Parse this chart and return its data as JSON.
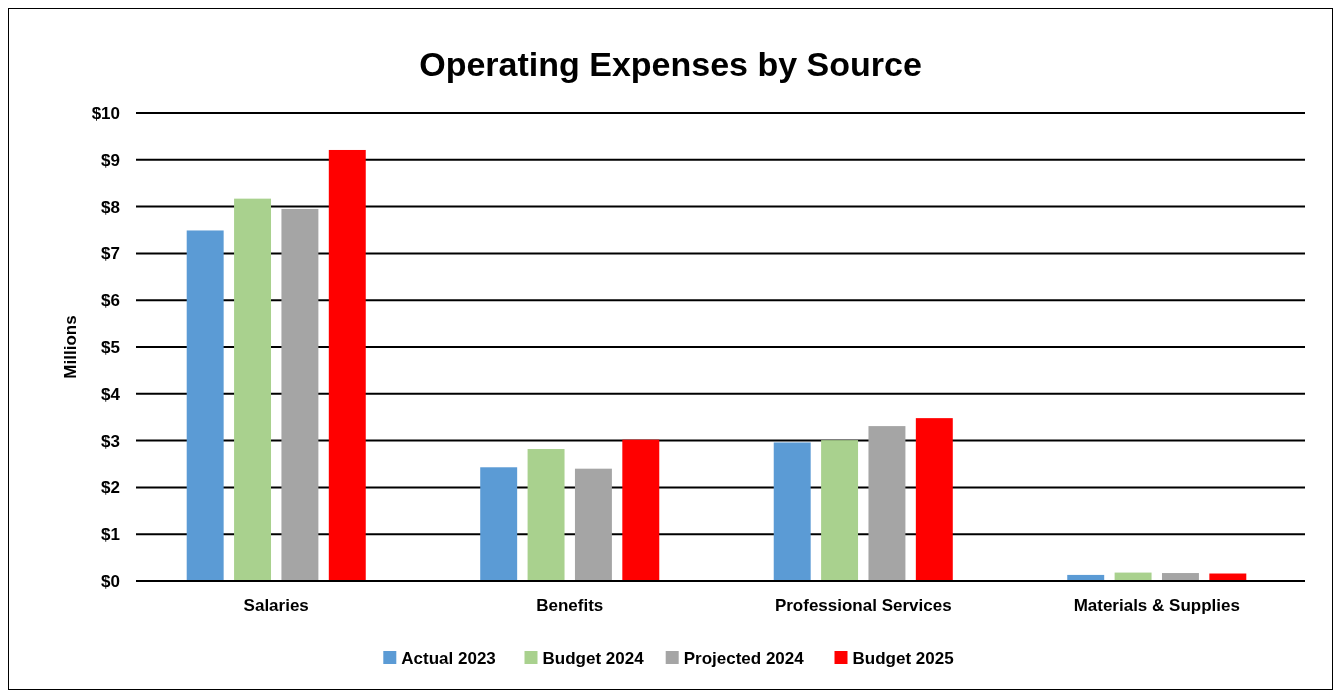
{
  "chart_data": {
    "type": "bar",
    "title": "Operating Expenses by Source",
    "ylabel": "Millions",
    "categories": [
      "Salaries",
      "Benefits",
      "Professional Services",
      "Materials & Supplies"
    ],
    "series": [
      {
        "name": "Actual 2023",
        "color": "#5b9bd5",
        "values": [
          7.49,
          2.43,
          2.96,
          0.13
        ]
      },
      {
        "name": "Budget 2024",
        "color": "#a9d18e",
        "values": [
          8.17,
          2.82,
          3.01,
          0.18
        ]
      },
      {
        "name": "Projected 2024",
        "color": "#a5a5a5",
        "values": [
          7.95,
          2.4,
          3.31,
          0.17
        ]
      },
      {
        "name": "Budget 2025",
        "color": "#ff0000",
        "values": [
          9.21,
          3.02,
          3.48,
          0.16
        ]
      }
    ],
    "ylim": [
      0,
      10
    ],
    "yticks": [
      {
        "value": 0,
        "label": "$0"
      },
      {
        "value": 1,
        "label": "$1"
      },
      {
        "value": 2,
        "label": "$2"
      },
      {
        "value": 3,
        "label": "$3"
      },
      {
        "value": 4,
        "label": "$4"
      },
      {
        "value": 5,
        "label": "$5"
      },
      {
        "value": 6,
        "label": "$6"
      },
      {
        "value": 7,
        "label": "$7"
      },
      {
        "value": 8,
        "label": "$8"
      },
      {
        "value": 9,
        "label": "$9"
      },
      {
        "value": 10,
        "label": "$10"
      }
    ],
    "grid": "y",
    "legend": "bottom"
  }
}
